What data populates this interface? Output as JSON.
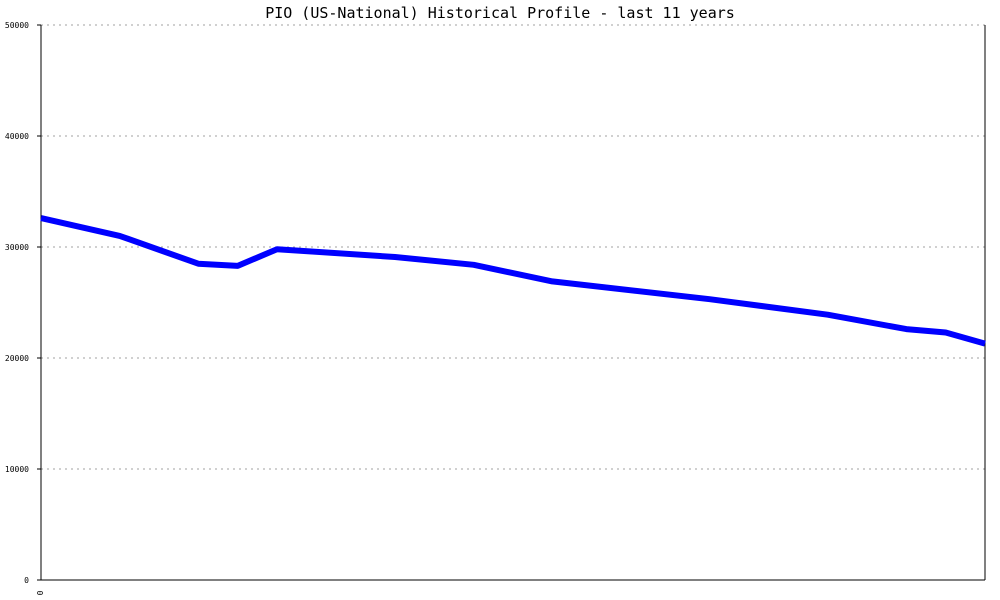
{
  "chart_data": {
    "type": "line",
    "title": "PIO (US-National) Historical Profile - last 11 years",
    "xlabel": "",
    "ylabel": "",
    "x_tick_labels": [
      "0"
    ],
    "y_ticks": [
      0,
      10000,
      20000,
      30000,
      40000,
      50000
    ],
    "y_tick_labels": [
      "0",
      "10000",
      "20000",
      "30000",
      "40000",
      "50000"
    ],
    "ylim": [
      0,
      50000
    ],
    "grid": true,
    "legend": "none",
    "series": [
      {
        "color": "#0000ff",
        "x": [
          0,
          2,
          4,
          5,
          6,
          9,
          11,
          13,
          17,
          20,
          22,
          23,
          24
        ],
        "values": [
          32600,
          31000,
          28500,
          28300,
          29800,
          29100,
          28400,
          26900,
          25300,
          23900,
          22600,
          22300,
          21300
        ]
      }
    ],
    "xlim": [
      0,
      24
    ]
  }
}
